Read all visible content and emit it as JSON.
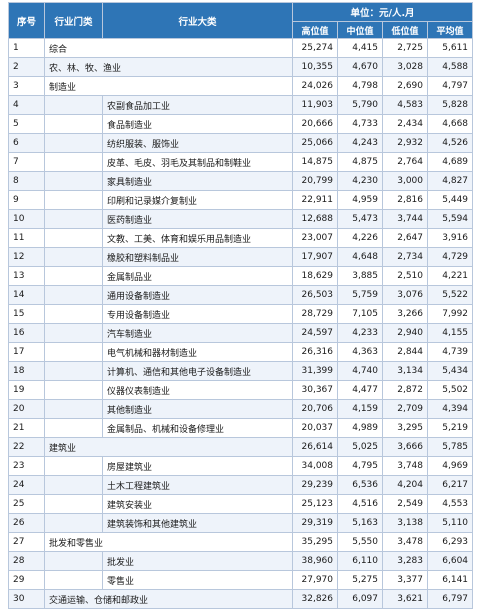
{
  "header": {
    "seq": "序号",
    "industry_category": "行业门类",
    "industry_major": "行业大类",
    "unit": "单位：元/人.月",
    "cols": [
      "高位值",
      "中位值",
      "低位值",
      "平均值"
    ]
  },
  "rows": [
    {
      "seq": "1",
      "cat": "综合",
      "sub": "",
      "v": [
        "25,274",
        "4,415",
        "2,725",
        "5,611"
      ]
    },
    {
      "seq": "2",
      "cat": "农、林、牧、渔业",
      "sub": "",
      "v": [
        "10,355",
        "4,670",
        "3,028",
        "4,588"
      ]
    },
    {
      "seq": "3",
      "cat": "制造业",
      "sub": "",
      "v": [
        "24,026",
        "4,798",
        "2,690",
        "4,797"
      ]
    },
    {
      "seq": "4",
      "cat": "",
      "sub": "农副食品加工业",
      "v": [
        "11,903",
        "5,790",
        "4,583",
        "5,828"
      ]
    },
    {
      "seq": "5",
      "cat": "",
      "sub": "食品制造业",
      "v": [
        "20,666",
        "4,733",
        "2,434",
        "4,668"
      ]
    },
    {
      "seq": "6",
      "cat": "",
      "sub": "纺织服装、服饰业",
      "v": [
        "25,066",
        "4,243",
        "2,932",
        "4,526"
      ]
    },
    {
      "seq": "7",
      "cat": "",
      "sub": "皮革、毛皮、羽毛及其制品和制鞋业",
      "v": [
        "14,875",
        "4,875",
        "2,764",
        "4,689"
      ]
    },
    {
      "seq": "8",
      "cat": "",
      "sub": "家具制造业",
      "v": [
        "20,799",
        "4,230",
        "3,000",
        "4,827"
      ]
    },
    {
      "seq": "9",
      "cat": "",
      "sub": "印刷和记录媒介复制业",
      "v": [
        "22,911",
        "4,959",
        "2,816",
        "5,449"
      ]
    },
    {
      "seq": "10",
      "cat": "",
      "sub": "医药制造业",
      "v": [
        "12,688",
        "5,473",
        "3,744",
        "5,594"
      ]
    },
    {
      "seq": "11",
      "cat": "",
      "sub": "文教、工美、体育和娱乐用品制造业",
      "v": [
        "23,007",
        "4,226",
        "2,647",
        "3,916"
      ]
    },
    {
      "seq": "12",
      "cat": "",
      "sub": "橡胶和塑料制品业",
      "v": [
        "17,907",
        "4,648",
        "2,734",
        "4,729"
      ]
    },
    {
      "seq": "13",
      "cat": "",
      "sub": "金属制品业",
      "v": [
        "18,629",
        "3,885",
        "2,510",
        "4,221"
      ]
    },
    {
      "seq": "14",
      "cat": "",
      "sub": "通用设备制造业",
      "v": [
        "26,503",
        "5,759",
        "3,076",
        "5,522"
      ]
    },
    {
      "seq": "15",
      "cat": "",
      "sub": "专用设备制造业",
      "v": [
        "28,729",
        "7,105",
        "3,266",
        "7,992"
      ]
    },
    {
      "seq": "16",
      "cat": "",
      "sub": "汽车制造业",
      "v": [
        "24,597",
        "4,233",
        "2,940",
        "4,155"
      ]
    },
    {
      "seq": "17",
      "cat": "",
      "sub": "电气机械和器材制造业",
      "v": [
        "26,316",
        "4,363",
        "2,844",
        "4,739"
      ]
    },
    {
      "seq": "18",
      "cat": "",
      "sub": "计算机、通信和其他电子设备制造业",
      "v": [
        "31,399",
        "4,740",
        "3,134",
        "5,434"
      ]
    },
    {
      "seq": "19",
      "cat": "",
      "sub": "仪器仪表制造业",
      "v": [
        "30,367",
        "4,477",
        "2,872",
        "5,502"
      ]
    },
    {
      "seq": "20",
      "cat": "",
      "sub": "其他制造业",
      "v": [
        "20,706",
        "4,159",
        "2,709",
        "4,394"
      ]
    },
    {
      "seq": "21",
      "cat": "",
      "sub": "金属制品、机械和设备修理业",
      "v": [
        "20,037",
        "4,989",
        "3,295",
        "5,219"
      ]
    },
    {
      "seq": "22",
      "cat": "建筑业",
      "sub": "",
      "v": [
        "26,614",
        "5,025",
        "3,666",
        "5,785"
      ]
    },
    {
      "seq": "23",
      "cat": "",
      "sub": "房屋建筑业",
      "v": [
        "34,008",
        "4,795",
        "3,748",
        "4,969"
      ]
    },
    {
      "seq": "24",
      "cat": "",
      "sub": "土木工程建筑业",
      "v": [
        "29,239",
        "6,536",
        "4,204",
        "6,217"
      ]
    },
    {
      "seq": "25",
      "cat": "",
      "sub": "建筑安装业",
      "v": [
        "25,123",
        "4,516",
        "2,549",
        "4,553"
      ]
    },
    {
      "seq": "26",
      "cat": "",
      "sub": "建筑装饰和其他建筑业",
      "v": [
        "29,319",
        "5,163",
        "3,138",
        "5,110"
      ]
    },
    {
      "seq": "27",
      "cat": "批发和零售业",
      "sub": "",
      "v": [
        "35,295",
        "5,550",
        "3,478",
        "6,293"
      ]
    },
    {
      "seq": "28",
      "cat": "",
      "sub": "批发业",
      "v": [
        "38,960",
        "6,110",
        "3,283",
        "6,604"
      ]
    },
    {
      "seq": "29",
      "cat": "",
      "sub": "零售业",
      "v": [
        "27,970",
        "5,275",
        "3,377",
        "6,141"
      ]
    },
    {
      "seq": "30",
      "cat": "交通运输、仓储和邮政业",
      "sub": "",
      "v": [
        "32,826",
        "6,097",
        "3,621",
        "6,797"
      ]
    }
  ]
}
